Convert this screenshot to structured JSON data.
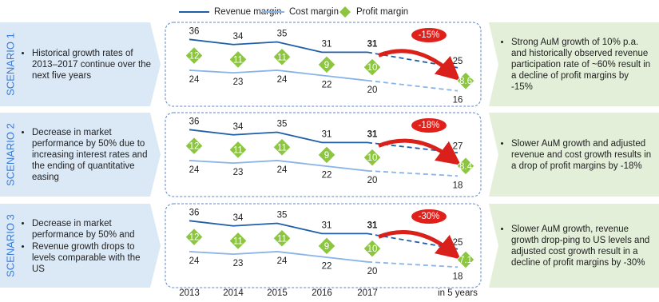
{
  "scenarios": [
    {
      "label": "SCENARIO 1",
      "bullets": [
        "Historical growth rates of 2013–2017 continue over the next five years"
      ],
      "outcome": "Strong AuM growth of 10% p.a. and historically observed revenue participation rate of ~60% result in a decline of profit margins by -15%"
    },
    {
      "label": "SCENARIO 2",
      "bullets": [
        "Decrease in market performance by 50% due to increasing interest rates and the ending of quantitative easing"
      ],
      "outcome": "Slower AuM growth and adjusted revenue and cost growth results in a drop of profit margins by -18%"
    },
    {
      "label": "SCENARIO 3",
      "bullets": [
        "Decrease in market performance by 50% and",
        "Revenue growth drops to levels comparable with the US"
      ],
      "outcome": "Slower AuM growth, revenue growth drop-ping to US levels and adjusted cost growth result in a decline of profit margins by -30%"
    }
  ],
  "chart_data": [
    {
      "type": "line",
      "annotation": "-15%",
      "ylim": [
        10,
        42
      ],
      "series": [
        {
          "name": "Revenue margin",
          "color": "#1f5fa8",
          "values": [
            36,
            34,
            35,
            31,
            31,
            25
          ]
        },
        {
          "name": "Cost margin",
          "color": "#8ab4e8",
          "values": [
            24,
            23,
            24,
            22,
            20,
            16
          ]
        },
        {
          "name": "Profit margin",
          "color": "#8cc63f",
          "marker": "diamond",
          "values": [
            12,
            11,
            11,
            9,
            10,
            8.6
          ]
        }
      ]
    },
    {
      "type": "line",
      "annotation": "-18%",
      "ylim": [
        10,
        42
      ],
      "series": [
        {
          "name": "Revenue margin",
          "color": "#1f5fa8",
          "values": [
            36,
            34,
            35,
            31,
            31,
            27
          ]
        },
        {
          "name": "Cost margin",
          "color": "#8ab4e8",
          "values": [
            24,
            23,
            24,
            22,
            20,
            18
          ]
        },
        {
          "name": "Profit margin",
          "color": "#8cc63f",
          "marker": "diamond",
          "values": [
            12,
            11,
            11,
            9,
            10,
            8.4
          ]
        }
      ]
    },
    {
      "type": "line",
      "annotation": "-30%",
      "ylim": [
        10,
        42
      ],
      "categories": [
        "2013",
        "2014",
        "2015",
        "2016",
        "2017",
        "in 5 years"
      ],
      "series": [
        {
          "name": "Revenue margin",
          "color": "#1f5fa8",
          "values": [
            36,
            34,
            35,
            31,
            31,
            25
          ]
        },
        {
          "name": "Cost margin",
          "color": "#8ab4e8",
          "values": [
            24,
            23,
            24,
            22,
            20,
            18
          ]
        },
        {
          "name": "Profit margin",
          "color": "#8cc63f",
          "marker": "diamond",
          "values": [
            12,
            11,
            11,
            9,
            10,
            7.1
          ]
        }
      ]
    }
  ]
}
